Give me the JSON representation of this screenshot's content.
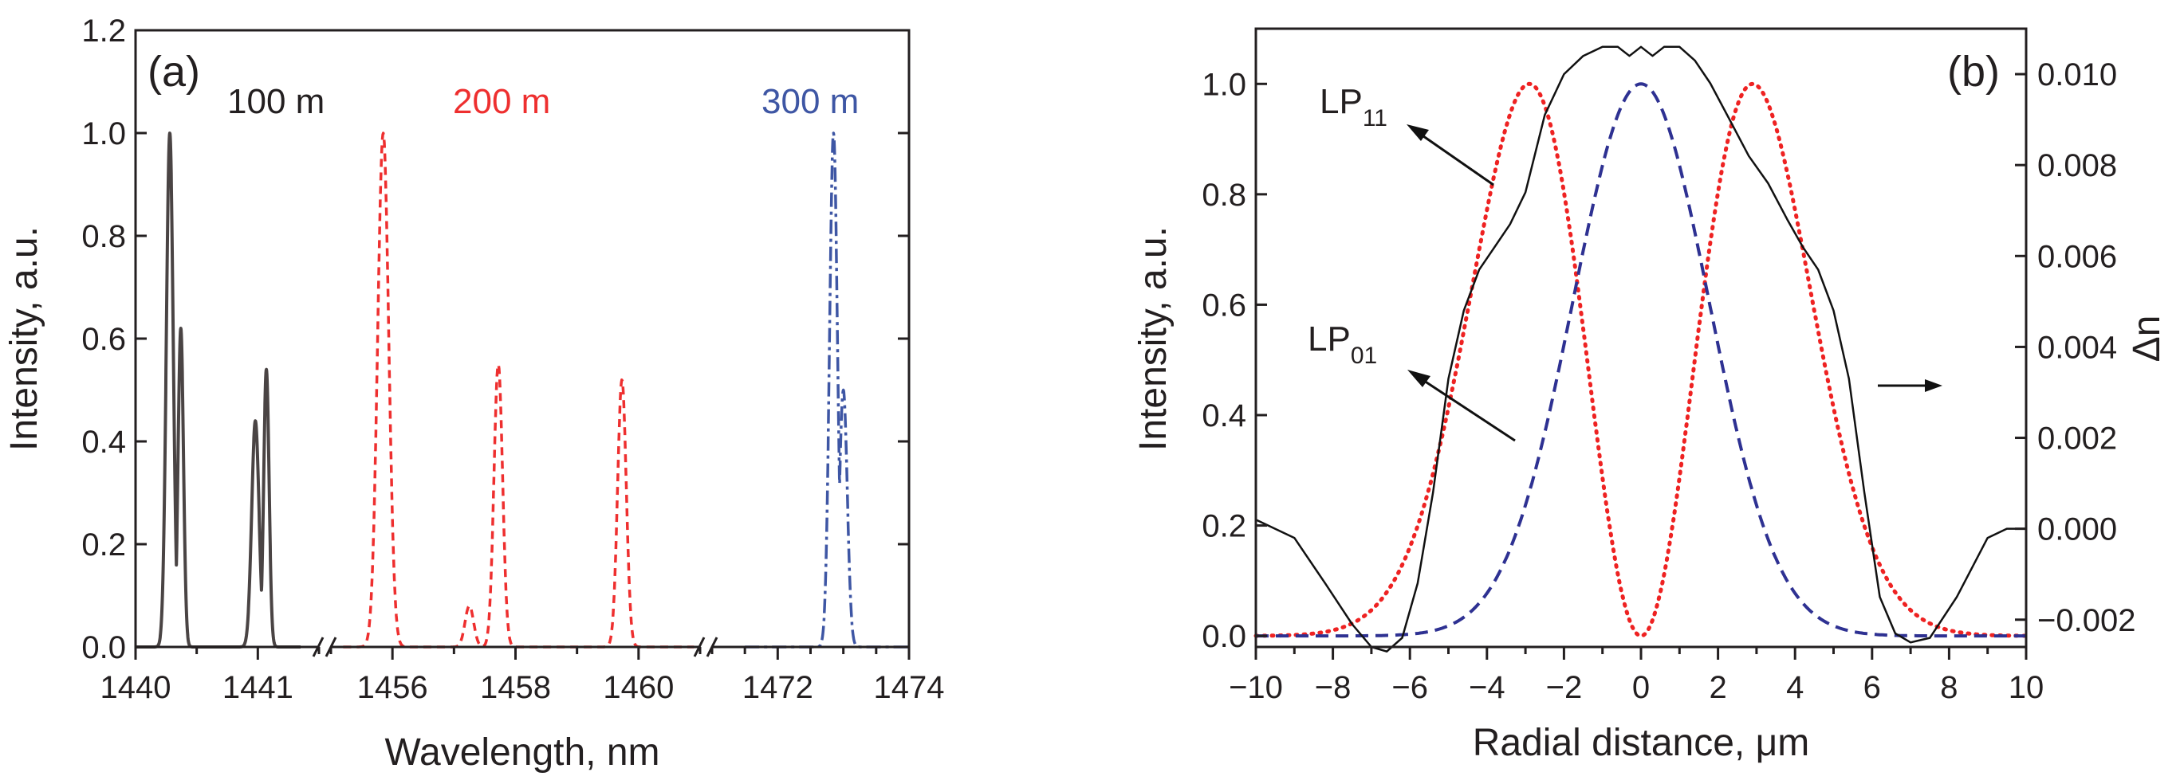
{
  "chart_data": [
    {
      "id": "a",
      "type": "line",
      "panel_label": "(a)",
      "xlabel": "Wavelength, nm",
      "ylabel": "Intensity, a.u.",
      "ylim": [
        0,
        1.2
      ],
      "x_axis_note": "broken x-axis with three segments separated by break marks",
      "x_segments": [
        {
          "range": [
            1440,
            1441.5
          ],
          "ticks": [
            1440,
            1441
          ]
        },
        {
          "range": [
            1455,
            1461
          ],
          "ticks": [
            1456,
            1458,
            1460
          ]
        },
        {
          "range": [
            1471,
            1474
          ],
          "ticks": [
            1472,
            1474
          ]
        }
      ],
      "x_tick_labels": [
        "1440",
        "1441",
        "1456",
        "1458",
        "1460",
        "1472",
        "1474"
      ],
      "y_ticks": [
        0.0,
        0.2,
        0.4,
        0.6,
        0.8,
        1.0,
        1.2
      ],
      "y_tick_labels": [
        "0.0",
        "0.2",
        "0.4",
        "0.6",
        "0.8",
        "1.0",
        "1.2"
      ],
      "series": [
        {
          "name": "100 m",
          "label": "100 m",
          "color": "#4a4444",
          "style": "solid",
          "peaks": [
            {
              "x": 1440.28,
              "height": 1.0,
              "sigma": 0.028
            },
            {
              "x": 1440.37,
              "height": 0.62,
              "sigma": 0.022
            },
            {
              "x": 1440.98,
              "height": 0.44,
              "sigma": 0.03
            },
            {
              "x": 1441.07,
              "height": 0.54,
              "sigma": 0.022
            }
          ]
        },
        {
          "name": "200 m",
          "label": "200 m",
          "color": "#ee2f2f",
          "style": "dashed",
          "peaks": [
            {
              "x": 1455.85,
              "height": 1.0,
              "sigma": 0.09
            },
            {
              "x": 1457.25,
              "height": 0.08,
              "sigma": 0.07
            },
            {
              "x": 1457.72,
              "height": 0.55,
              "sigma": 0.07
            },
            {
              "x": 1459.73,
              "height": 0.52,
              "sigma": 0.07
            }
          ]
        },
        {
          "name": "300 m",
          "label": "300 m",
          "color": "#3e56a4",
          "style": "dash-dot",
          "peaks": [
            {
              "x": 1472.85,
              "height": 1.0,
              "sigma": 0.06
            },
            {
              "x": 1473.0,
              "height": 0.5,
              "sigma": 0.06
            }
          ]
        }
      ]
    },
    {
      "id": "b",
      "type": "line",
      "panel_label": "(b)",
      "xlabel": "Radial distance, μm",
      "ylabel": "Intensity, a.u.",
      "y2label": "Δn",
      "xlim": [
        -10,
        10
      ],
      "ylim": [
        -0.02,
        1.1
      ],
      "y2lim": [
        -0.0026,
        0.011
      ],
      "x_ticks": [
        -10,
        -8,
        -6,
        -4,
        -2,
        0,
        2,
        4,
        6,
        8,
        10
      ],
      "x_tick_labels": [
        "−10",
        "−8",
        "−6",
        "−4",
        "−2",
        "0",
        "2",
        "4",
        "6",
        "8",
        "10"
      ],
      "y_ticks": [
        0.0,
        0.2,
        0.4,
        0.6,
        0.8,
        1.0
      ],
      "y_tick_labels": [
        "0.0",
        "0.2",
        "0.4",
        "0.6",
        "0.8",
        "1.0"
      ],
      "y2_ticks": [
        -0.002,
        0.0,
        0.002,
        0.004,
        0.006,
        0.008,
        0.01
      ],
      "y2_tick_labels": [
        "−0.002",
        "0.000",
        "0.002",
        "0.004",
        "0.006",
        "0.008",
        "0.010"
      ],
      "series": [
        {
          "name": "LP01",
          "color": "#2e3192",
          "style": "dashed",
          "axis": "left",
          "model": "gaussian",
          "peak": 1.0,
          "width": 2.5
        },
        {
          "name": "LP11",
          "color": "#ee2222",
          "style": "dotted",
          "axis": "left",
          "model": "hermite-gaussian",
          "peak_positions": [
            -2.9,
            2.9
          ],
          "peak": 1.0
        },
        {
          "name": "Δn profile",
          "color": "#111111",
          "style": "solid",
          "axis": "right",
          "x": [
            -10,
            -9,
            -8.2,
            -7.5,
            -7,
            -6.6,
            -6.2,
            -5.8,
            -5.4,
            -5,
            -4.6,
            -4.2,
            -3.8,
            -3.4,
            -3,
            -2.5,
            -2,
            -1.5,
            -1,
            -0.6,
            -0.3,
            0,
            0.3,
            0.6,
            1,
            1.4,
            1.8,
            2.3,
            2.8,
            3.3,
            3.8,
            4.2,
            4.6,
            5,
            5.4,
            5.8,
            6.2,
            6.6,
            7,
            7.5,
            8.2,
            9,
            9.5,
            10
          ],
          "y": [
            0.0002,
            -0.0002,
            -0.0012,
            -0.0021,
            -0.0026,
            -0.0027,
            -0.0024,
            -0.0012,
            0.0008,
            0.0033,
            0.0048,
            0.0057,
            0.0062,
            0.0067,
            0.0074,
            0.0091,
            0.01,
            0.0104,
            0.0106,
            0.0106,
            0.0104,
            0.0106,
            0.0104,
            0.0106,
            0.0106,
            0.0103,
            0.0098,
            0.009,
            0.0082,
            0.0076,
            0.0068,
            0.0062,
            0.0057,
            0.0048,
            0.0033,
            0.0008,
            -0.0015,
            -0.0023,
            -0.0025,
            -0.0024,
            -0.0015,
            -0.0002,
            0.0,
            0.0
          ]
        }
      ],
      "annotations": [
        {
          "text": "LP",
          "sub": "11",
          "points_to": "LP11 curve"
        },
        {
          "text": "LP",
          "sub": "01",
          "points_to": "LP01 curve"
        },
        {
          "text": "→",
          "meaning": "solid curve belongs to right Δn axis"
        }
      ]
    }
  ]
}
